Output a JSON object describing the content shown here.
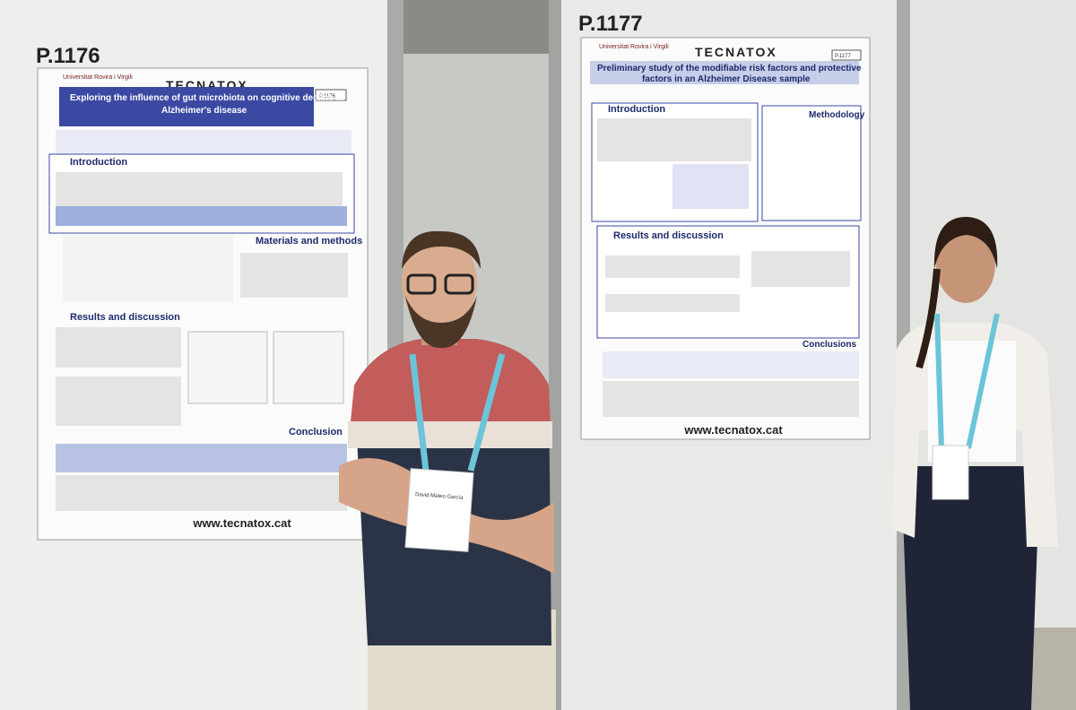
{
  "posters": [
    {
      "code": "P.1176",
      "university": "Universitat Rovira i Virgili",
      "brand": "TECNATOX",
      "badge": "P.1176",
      "title_lines": [
        "Exploring the influence of gut microbiota on cognitive decline in",
        "Alzheimer's disease"
      ],
      "sections": [
        "Introduction",
        "Materials and methods",
        "Results and discussion",
        "Conclusion"
      ],
      "website": "www.tecnatox.cat"
    },
    {
      "code": "P.1177",
      "university": "Universitat Rovira i Virgili",
      "brand": "TECNATOX",
      "badge": "P.1177",
      "title_lines": [
        "Preliminary study of the modifiable risk factors and protective",
        "factors in an Alzheimer Disease sample"
      ],
      "sections": [
        "Introduction",
        "Methodology",
        "Results and discussion",
        "Conclusions"
      ],
      "website": "www.tecnatox.cat"
    }
  ],
  "name_badge": "David Mateo García"
}
